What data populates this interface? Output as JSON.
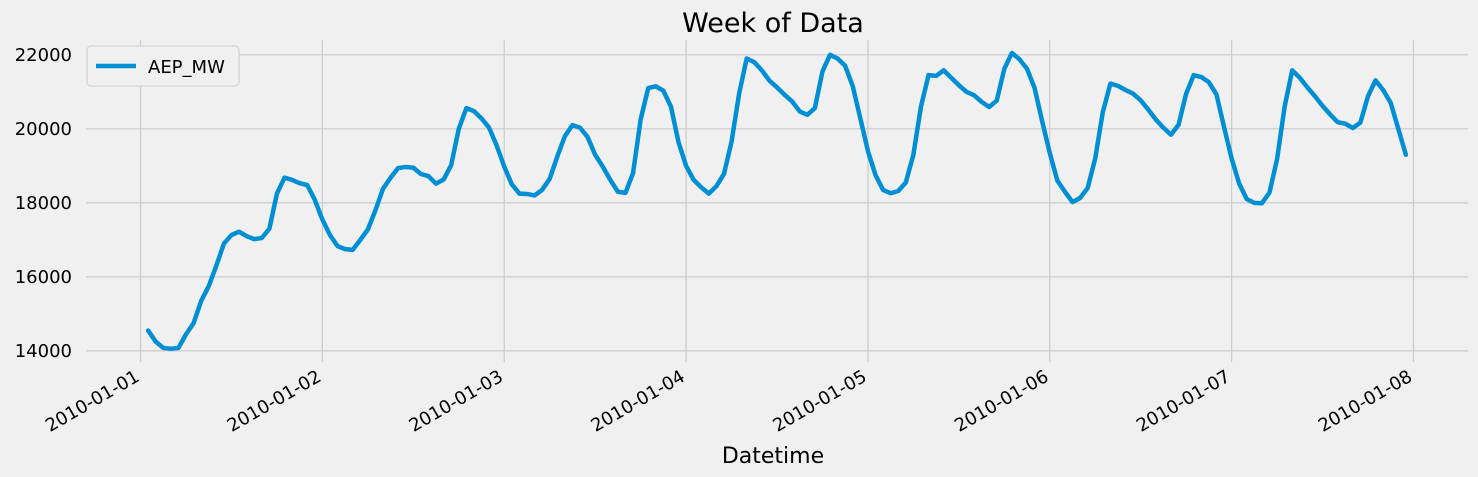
{
  "chart_data": {
    "type": "line",
    "title": "Week of Data",
    "xlabel": "Datetime",
    "ylabel": "",
    "ylim": [
      13700,
      22400
    ],
    "xlim": [
      "2010-01-01",
      "2010-01-08"
    ],
    "yticks": [
      14000,
      16000,
      18000,
      20000,
      22000
    ],
    "ytick_labels": [
      "14000",
      "16000",
      "18000",
      "20000",
      "22000"
    ],
    "xticks": [
      "2010-01-01",
      "2010-01-02",
      "2010-01-03",
      "2010-01-04",
      "2010-01-05",
      "2010-01-06",
      "2010-01-07",
      "2010-01-08"
    ],
    "grid": true,
    "legend": "top-left",
    "line_color": "#008fd5",
    "background": "#f0f0f0",
    "x_start": "2010-01-01 01:00",
    "x_step_hours": 1,
    "series": [
      {
        "name": "AEP_MW",
        "values": [
          14550,
          14250,
          14080,
          14060,
          14080,
          14450,
          14750,
          15350,
          15750,
          16300,
          16900,
          17130,
          17220,
          17100,
          17020,
          17050,
          17300,
          18250,
          18680,
          18620,
          18530,
          18480,
          18080,
          17550,
          17130,
          16830,
          16750,
          16730,
          17000,
          17280,
          17800,
          18380,
          18680,
          18940,
          18970,
          18950,
          18780,
          18720,
          18520,
          18630,
          19020,
          20000,
          20560,
          20480,
          20280,
          20030,
          19550,
          18980,
          18500,
          18250,
          18240,
          18200,
          18350,
          18650,
          19250,
          19800,
          20100,
          20030,
          19780,
          19300,
          18980,
          18620,
          18300,
          18270,
          18800,
          20250,
          21100,
          21150,
          21030,
          20600,
          19640,
          19000,
          18620,
          18420,
          18250,
          18450,
          18780,
          19650,
          20950,
          21900,
          21800,
          21580,
          21300,
          21120,
          20920,
          20740,
          20470,
          20380,
          20560,
          21550,
          22000,
          21900,
          21700,
          21150,
          20280,
          19400,
          18750,
          18350,
          18260,
          18320,
          18550,
          19300,
          20600,
          21450,
          21430,
          21580,
          21380,
          21180,
          21000,
          20910,
          20730,
          20590,
          20760,
          21620,
          22050,
          21880,
          21620,
          21100,
          20200,
          19350,
          18600,
          18300,
          18020,
          18130,
          18400,
          19200,
          20450,
          21220,
          21160,
          21050,
          20950,
          20770,
          20520,
          20250,
          20030,
          19840,
          20110,
          20950,
          21450,
          21400,
          21260,
          20930,
          20050,
          19200,
          18520,
          18100,
          18000,
          17990,
          18280,
          19180,
          20600,
          21580,
          21380,
          21120,
          20880,
          20620,
          20390,
          20180,
          20140,
          20020,
          20170,
          20880,
          21310,
          21050,
          20700,
          20000,
          19300
        ]
      }
    ]
  }
}
